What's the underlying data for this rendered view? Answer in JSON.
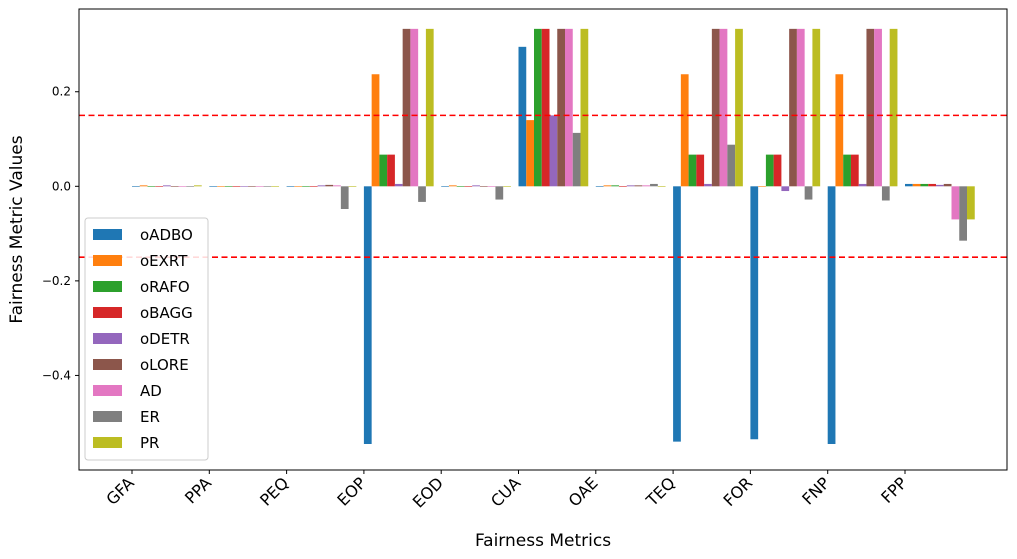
{
  "chart_data": {
    "type": "bar",
    "title": "",
    "xlabel": "Fairness Metrics",
    "ylabel": "Fairness Metric Values",
    "ylim": [
      -0.6,
      0.375
    ],
    "yticks": [
      -0.4,
      -0.2,
      0.0,
      0.2
    ],
    "ytick_labels": [
      "−0.4",
      "−0.2",
      "0.0",
      "0.2"
    ],
    "grid": false,
    "legend_position": "lower-left",
    "categories": [
      "GFA",
      "PPA",
      "PEQ",
      "EOP",
      "EOD",
      "CUA",
      "OAE",
      "TEQ",
      "FOR",
      "FNP",
      "FPP"
    ],
    "reference_lines": [
      {
        "y": 0.15,
        "color": "#ff0000",
        "style": "dashed"
      },
      {
        "y": -0.15,
        "color": "#ff0000",
        "style": "dashed"
      }
    ],
    "series": [
      {
        "name": "oADBO",
        "color": "#1f77b4",
        "values": [
          0,
          0,
          0,
          -0.545,
          0,
          0.295,
          0,
          -0.54,
          -0.535,
          -0.545,
          0.005
        ]
      },
      {
        "name": "oEXRT",
        "color": "#ff7f0e",
        "values": [
          0.002,
          0,
          0,
          0.237,
          0.002,
          0.14,
          0.002,
          0.237,
          0,
          0.237,
          0.005
        ]
      },
      {
        "name": "oRAFO",
        "color": "#2ca02c",
        "values": [
          0,
          0,
          0,
          0.067,
          0,
          0.333,
          0.002,
          0.067,
          0.067,
          0.067,
          0.005
        ]
      },
      {
        "name": "oBAGG",
        "color": "#d62728",
        "values": [
          0,
          0,
          0,
          0.067,
          0,
          0.333,
          0,
          0.067,
          0.067,
          0.067,
          0.005
        ]
      },
      {
        "name": "oDETR",
        "color": "#9467bd",
        "values": [
          0.002,
          0,
          0.002,
          0.005,
          0.002,
          0.15,
          0.002,
          0.005,
          -0.01,
          0.005,
          0.003
        ]
      },
      {
        "name": "oLORE",
        "color": "#8c564b",
        "values": [
          0,
          0,
          0.003,
          0.333,
          0,
          0.333,
          0.002,
          0.333,
          0.333,
          0.333,
          0.005
        ]
      },
      {
        "name": "AD",
        "color": "#e377c2",
        "values": [
          0,
          0,
          0.002,
          0.333,
          0,
          0.333,
          0.002,
          0.333,
          0.333,
          0.333,
          -0.07
        ]
      },
      {
        "name": "ER",
        "color": "#7f7f7f",
        "values": [
          0,
          0,
          -0.048,
          -0.033,
          -0.028,
          0.113,
          0.005,
          0.088,
          -0.028,
          -0.03,
          -0.115
        ]
      },
      {
        "name": "PR",
        "color": "#bcbd22",
        "values": [
          0.002,
          0,
          0,
          0.333,
          0,
          0.333,
          0,
          0.333,
          0.333,
          0.333,
          -0.07
        ]
      }
    ]
  }
}
